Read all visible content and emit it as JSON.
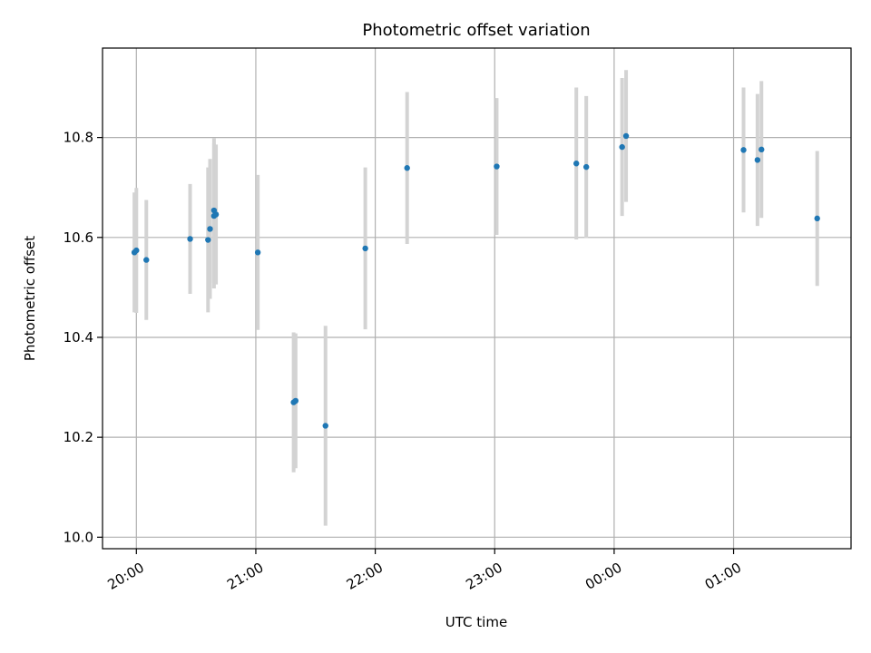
{
  "chart_data": {
    "type": "scatter",
    "title": "Photometric offset variation",
    "xlabel": "UTC time",
    "ylabel": "Photometric offset",
    "x_axis_kind": "time",
    "x_tick_labels": [
      "20:00",
      "21:00",
      "22:00",
      "23:00",
      "00:00",
      "01:00"
    ],
    "x_tick_times": [
      "2000-01-01T20:00",
      "2000-01-01T21:00",
      "2000-01-01T22:00",
      "2000-01-01T23:00",
      "2000-01-02T00:00",
      "2000-01-02T01:00"
    ],
    "xlim": [
      "2000-01-01T19:43",
      "2000-01-02T01:59"
    ],
    "y_ticks": [
      10.0,
      10.2,
      10.4,
      10.6,
      10.8
    ],
    "y_tick_labels": [
      "10.0",
      "10.2",
      "10.4",
      "10.6",
      "10.8"
    ],
    "ylim": [
      9.977,
      10.979
    ],
    "grid": true,
    "marker_color": "#1f77b4",
    "errorbar_color": "#d3d3d3",
    "points": [
      {
        "t": "2000-01-01T19:59",
        "y": 10.57,
        "err": 0.12
      },
      {
        "t": "2000-01-01T20:00",
        "y": 10.574,
        "err": 0.125
      },
      {
        "t": "2000-01-01T20:05",
        "y": 10.555,
        "err": 0.12
      },
      {
        "t": "2000-01-01T20:27",
        "y": 10.597,
        "err": 0.11
      },
      {
        "t": "2000-01-01T20:36",
        "y": 10.595,
        "err": 0.145
      },
      {
        "t": "2000-01-01T20:37",
        "y": 10.617,
        "err": 0.14
      },
      {
        "t": "2000-01-01T20:39",
        "y": 10.654,
        "err": 0.145
      },
      {
        "t": "2000-01-01T20:39",
        "y": 10.643,
        "err": 0.145
      },
      {
        "t": "2000-01-01T20:40",
        "y": 10.646,
        "err": 0.14
      },
      {
        "t": "2000-01-01T21:01",
        "y": 10.57,
        "err": 0.155
      },
      {
        "t": "2000-01-01T21:19",
        "y": 10.27,
        "err": 0.14
      },
      {
        "t": "2000-01-01T21:20",
        "y": 10.273,
        "err": 0.135
      },
      {
        "t": "2000-01-01T21:35",
        "y": 10.223,
        "err": 0.2
      },
      {
        "t": "2000-01-01T21:55",
        "y": 10.578,
        "err": 0.162
      },
      {
        "t": "2000-01-01T22:16",
        "y": 10.739,
        "err": 0.152
      },
      {
        "t": "2000-01-01T23:01",
        "y": 10.742,
        "err": 0.137
      },
      {
        "t": "2000-01-01T23:41",
        "y": 10.748,
        "err": 0.152
      },
      {
        "t": "2000-01-01T23:46",
        "y": 10.741,
        "err": 0.142
      },
      {
        "t": "2000-01-02T00:04",
        "y": 10.781,
        "err": 0.138
      },
      {
        "t": "2000-01-02T00:06",
        "y": 10.803,
        "err": 0.132
      },
      {
        "t": "2000-01-02T01:05",
        "y": 10.775,
        "err": 0.125
      },
      {
        "t": "2000-01-02T01:12",
        "y": 10.755,
        "err": 0.132
      },
      {
        "t": "2000-01-02T01:14",
        "y": 10.776,
        "err": 0.137
      },
      {
        "t": "2000-01-02T01:42",
        "y": 10.638,
        "err": 0.135
      }
    ]
  }
}
